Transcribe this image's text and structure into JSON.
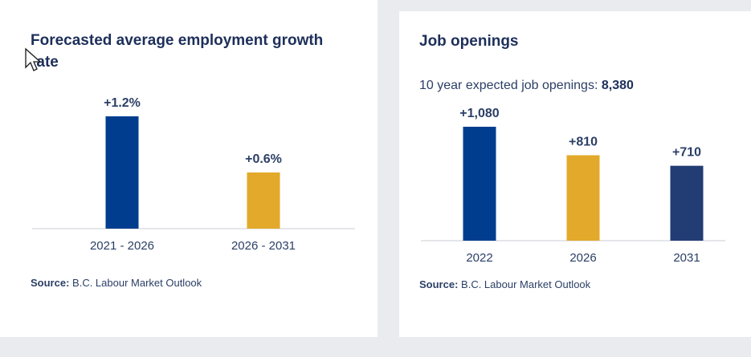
{
  "colors": {
    "blue": "#003d8f",
    "gold": "#e3a92a",
    "navy": "#223c74",
    "text": "#2b3f66",
    "title": "#1d2f5a"
  },
  "left": {
    "title": "Forecasted average employment growth rate",
    "source_label": "Source:",
    "source_text": "B.C. Labour Market Outlook"
  },
  "right": {
    "title": "Job openings",
    "subtitle_prefix": "10 year expected job openings:",
    "subtitle_value": "8,380",
    "source_label": "Source:",
    "source_text": "B.C. Labour Market Outlook"
  },
  "chart_data": [
    {
      "type": "bar",
      "title": "Forecasted average employment growth rate",
      "categories": [
        "2021 - 2026",
        "2026 - 2031"
      ],
      "values": [
        1.2,
        0.6
      ],
      "data_labels": [
        "+1.2%",
        "+0.6%"
      ],
      "colors": [
        "#003d8f",
        "#e3a92a"
      ],
      "ylim": [
        0,
        1.2
      ],
      "grid": false
    },
    {
      "type": "bar",
      "title": "Job openings",
      "categories": [
        "2022",
        "2026",
        "2031"
      ],
      "values": [
        1080,
        810,
        710
      ],
      "data_labels": [
        "+1,080",
        "+810",
        "+710"
      ],
      "colors": [
        "#003d8f",
        "#e3a92a",
        "#223c74"
      ],
      "ylim": [
        0,
        1080
      ],
      "grid": false
    }
  ]
}
